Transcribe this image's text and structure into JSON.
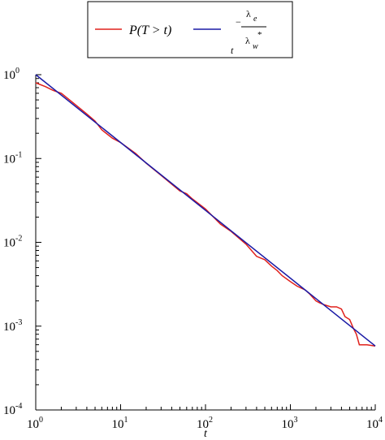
{
  "chart_data": {
    "type": "line",
    "xscale": "log",
    "yscale": "log",
    "xlim": [
      1,
      10000
    ],
    "ylim": [
      0.0001,
      1
    ],
    "xlabel": "t",
    "ylabel": "",
    "grid": false,
    "legend_position": "top-center",
    "x_ticks": [
      {
        "value": 1,
        "base": "10",
        "exp": "0"
      },
      {
        "value": 10,
        "base": "10",
        "exp": "1"
      },
      {
        "value": 100,
        "base": "10",
        "exp": "2"
      },
      {
        "value": 1000,
        "base": "10",
        "exp": "3"
      },
      {
        "value": 10000,
        "base": "10",
        "exp": "4"
      }
    ],
    "y_ticks": [
      {
        "value": 1,
        "base": "10",
        "exp": "0"
      },
      {
        "value": 0.1,
        "base": "10",
        "exp": "-1"
      },
      {
        "value": 0.01,
        "base": "10",
        "exp": "-2"
      },
      {
        "value": 0.001,
        "base": "10",
        "exp": "-3"
      },
      {
        "value": 0.0001,
        "base": "10",
        "exp": "-4"
      }
    ],
    "series": [
      {
        "name": "P(T > t)",
        "color": "#e0201b",
        "points": [
          [
            1,
            0.8
          ],
          [
            1.3,
            0.72
          ],
          [
            1.6,
            0.65
          ],
          [
            2,
            0.6
          ],
          [
            2.5,
            0.5
          ],
          [
            3,
            0.43
          ],
          [
            4,
            0.34
          ],
          [
            5,
            0.28
          ],
          [
            6,
            0.22
          ],
          [
            8,
            0.175
          ],
          [
            10,
            0.155
          ],
          [
            15,
            0.115
          ],
          [
            20,
            0.088
          ],
          [
            30,
            0.063
          ],
          [
            50,
            0.041
          ],
          [
            60,
            0.038
          ],
          [
            70,
            0.033
          ],
          [
            100,
            0.025
          ],
          [
            150,
            0.0165
          ],
          [
            200,
            0.0135
          ],
          [
            300,
            0.0095
          ],
          [
            400,
            0.0068
          ],
          [
            500,
            0.0062
          ],
          [
            600,
            0.0052
          ],
          [
            700,
            0.0046
          ],
          [
            800,
            0.004
          ],
          [
            1000,
            0.0034
          ],
          [
            1200,
            0.003
          ],
          [
            1500,
            0.0027
          ],
          [
            1700,
            0.0024
          ],
          [
            2000,
            0.002
          ],
          [
            2200,
            0.0019
          ],
          [
            2500,
            0.0018
          ],
          [
            3000,
            0.0017
          ],
          [
            3500,
            0.0017
          ],
          [
            4000,
            0.0016
          ],
          [
            4400,
            0.0013
          ],
          [
            5000,
            0.0012
          ],
          [
            5500,
            0.00095
          ],
          [
            6000,
            0.0008
          ],
          [
            6500,
            0.0006
          ],
          [
            8000,
            0.0006
          ],
          [
            10000,
            0.00058
          ]
        ]
      },
      {
        "name": "t^(-λ_e/λ*_w)",
        "color": "#1a1aa6",
        "points": [
          [
            1,
            1.0
          ],
          [
            10000,
            0.00058
          ]
        ]
      }
    ],
    "legend": {
      "entry_1": {
        "label": "P(T > t)",
        "color": "#e0201b"
      },
      "entry_2": {
        "base": "t",
        "num": "λ",
        "num_sub": "e",
        "den": "λ",
        "den_sub": "w",
        "den_sup": "*",
        "minus": "−",
        "color": "#1a1aa6"
      }
    }
  }
}
